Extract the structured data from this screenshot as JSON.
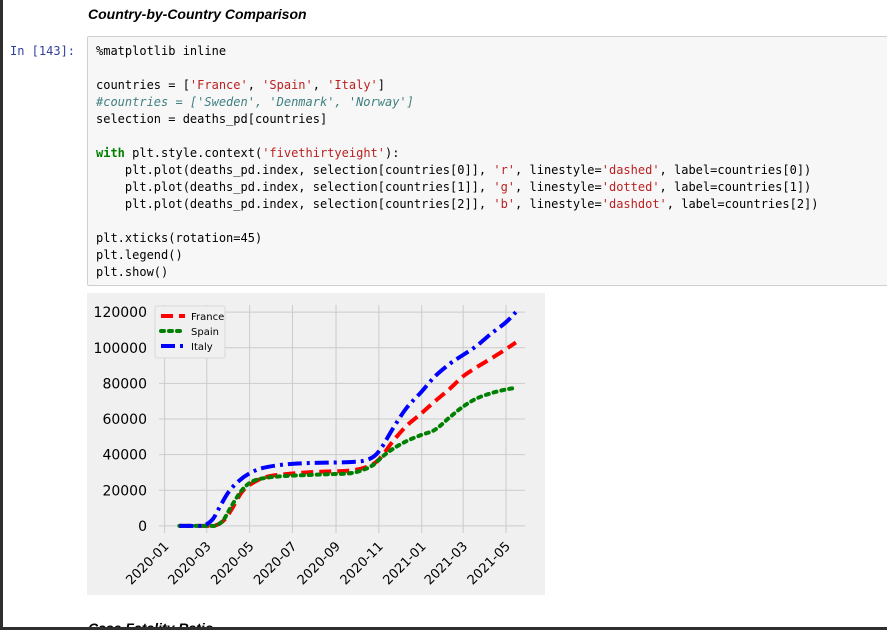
{
  "notebook": {
    "section_heading": "Country-by-Country Comparison",
    "next_heading": "Case Fatality Ratio",
    "cell": {
      "prompt": "In [143]:",
      "code_lines": [
        "%matplotlib inline",
        "",
        "countries = ['France', 'Spain', 'Italy']",
        "#countries = ['Sweden', 'Denmark', 'Norway']",
        "selection = deaths_pd[countries]",
        "",
        "with plt.style.context('fivethirtyeight'):",
        "    plt.plot(deaths_pd.index, selection[countries[0]], 'r', linestyle='dashed', label=countries[0])",
        "    plt.plot(deaths_pd.index, selection[countries[1]], 'g', linestyle='dotted', label=countries[1])",
        "    plt.plot(deaths_pd.index, selection[countries[2]], 'b', linestyle='dashdot', label=countries[2])",
        "",
        "plt.xticks(rotation=45)",
        "plt.legend()",
        "plt.show()"
      ]
    }
  },
  "chart_data": {
    "type": "line",
    "style": "fivethirtyeight",
    "grid": true,
    "legend_position": "top-left",
    "x_tick_labels": [
      "2020-01",
      "2020-03",
      "2020-05",
      "2020-07",
      "2020-09",
      "2020-11",
      "2021-01",
      "2021-03",
      "2021-05"
    ],
    "y_tick_labels": [
      "0",
      "20000",
      "40000",
      "60000",
      "80000",
      "100000",
      "120000"
    ],
    "ylim": [
      -4000,
      124000
    ],
    "x_tick_rotation": 45,
    "series": [
      {
        "name": "France",
        "color": "#ff0000",
        "linestyle": "dashed",
        "x": [
          "2020-01-22",
          "2020-02-20",
          "2020-03-05",
          "2020-03-15",
          "2020-03-25",
          "2020-04-05",
          "2020-04-20",
          "2020-05-05",
          "2020-05-25",
          "2020-06-20",
          "2020-07-20",
          "2020-08-20",
          "2020-09-20",
          "2020-10-10",
          "2020-10-25",
          "2020-11-05",
          "2020-11-20",
          "2020-12-10",
          "2020-12-31",
          "2021-01-20",
          "2021-02-10",
          "2021-03-01",
          "2021-03-20",
          "2021-04-10",
          "2021-04-30",
          "2021-05-15"
        ],
        "values": [
          0,
          0,
          50,
          500,
          3000,
          9000,
          19000,
          24000,
          27500,
          29000,
          30000,
          30500,
          31000,
          32500,
          35000,
          39000,
          47000,
          56000,
          63000,
          70000,
          77000,
          84000,
          89000,
          94000,
          99000,
          103000
        ]
      },
      {
        "name": "Spain",
        "color": "#008000",
        "linestyle": "dotted",
        "x": [
          "2020-01-22",
          "2020-02-20",
          "2020-03-05",
          "2020-03-15",
          "2020-03-25",
          "2020-04-05",
          "2020-04-20",
          "2020-05-05",
          "2020-05-25",
          "2020-06-20",
          "2020-07-20",
          "2020-08-20",
          "2020-09-20",
          "2020-10-10",
          "2020-10-25",
          "2020-11-05",
          "2020-11-20",
          "2020-12-10",
          "2020-12-31",
          "2021-01-20",
          "2021-02-10",
          "2021-03-01",
          "2021-03-20",
          "2021-04-10",
          "2021-04-30",
          "2021-05-15"
        ],
        "values": [
          0,
          0,
          0,
          300,
          3500,
          11000,
          20000,
          25000,
          27000,
          28000,
          28500,
          29000,
          29500,
          31500,
          34500,
          38500,
          43000,
          47500,
          51000,
          54000,
          61000,
          67000,
          71500,
          74500,
          76500,
          77500
        ]
      },
      {
        "name": "Italy",
        "color": "#0000ff",
        "linestyle": "dashdot",
        "x": [
          "2020-01-22",
          "2020-02-20",
          "2020-02-28",
          "2020-03-10",
          "2020-03-20",
          "2020-04-01",
          "2020-04-15",
          "2020-05-01",
          "2020-05-20",
          "2020-06-20",
          "2020-07-20",
          "2020-08-20",
          "2020-09-20",
          "2020-10-10",
          "2020-10-25",
          "2020-11-05",
          "2020-11-20",
          "2020-12-10",
          "2020-12-31",
          "2021-01-20",
          "2021-02-10",
          "2021-03-01",
          "2021-03-20",
          "2021-04-10",
          "2021-04-30",
          "2021-05-15"
        ],
        "values": [
          0,
          0,
          500,
          4000,
          11000,
          19000,
          25000,
          29500,
          32500,
          34500,
          35200,
          35500,
          35800,
          36500,
          39000,
          44000,
          54000,
          66000,
          75000,
          84000,
          91000,
          96000,
          101000,
          108000,
          114000,
          120000
        ]
      }
    ]
  }
}
